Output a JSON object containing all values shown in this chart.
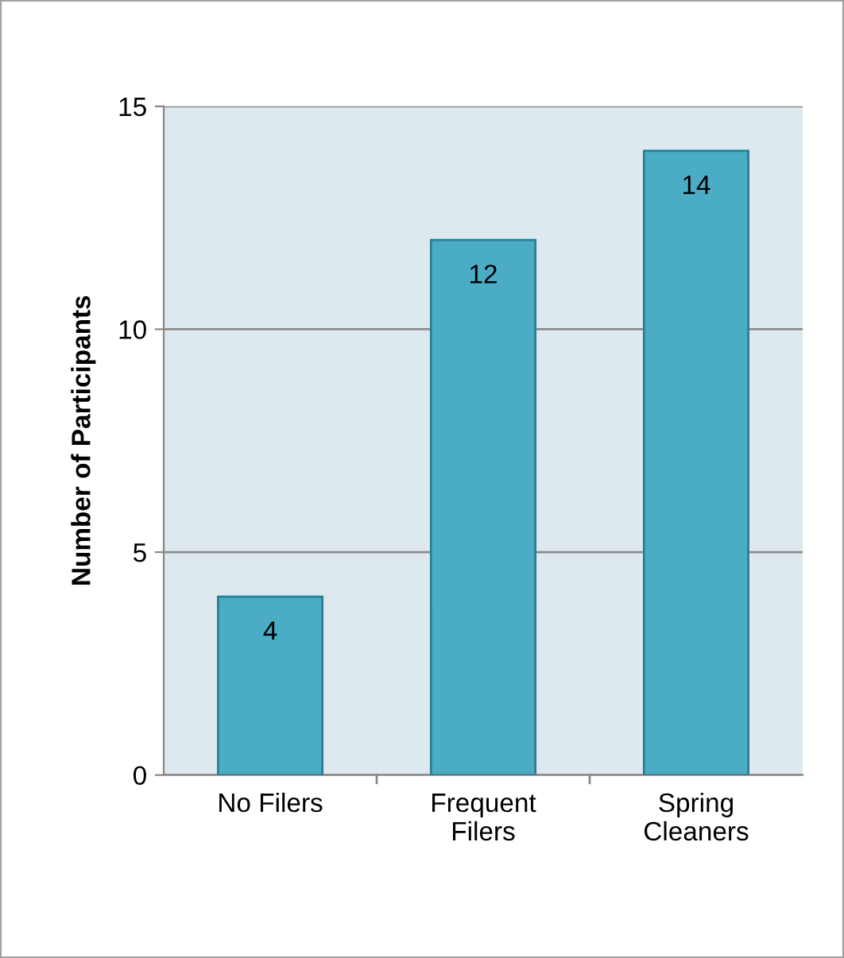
{
  "chart_data": {
    "type": "bar",
    "ylabel": "Number of Participants",
    "categories": [
      "No Filers",
      "Frequent\nFilers",
      "Spring\nCleaners"
    ],
    "values": [
      4,
      12,
      14
    ],
    "color": "#4bacc6",
    "ylim": [
      0,
      15
    ],
    "yticks": [
      0,
      5,
      10,
      15
    ],
    "grid": "y",
    "data_labels": true
  }
}
